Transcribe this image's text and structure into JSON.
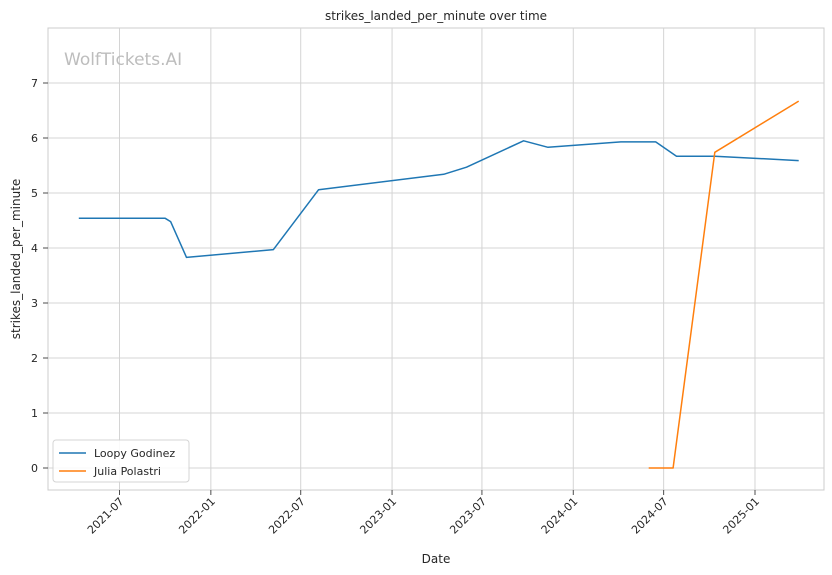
{
  "watermark": "WolfTickets.AI",
  "chart_data": {
    "type": "line",
    "title": "strikes_landed_per_minute over time",
    "xlabel": "Date",
    "ylabel": "strikes_landed_per_minute",
    "x_ticks": [
      "2021-07",
      "2022-01",
      "2022-07",
      "2023-01",
      "2023-07",
      "2024-01",
      "2024-07",
      "2025-01"
    ],
    "y_ticks": [
      "0",
      "1",
      "2",
      "3",
      "4",
      "5",
      "6",
      "7"
    ],
    "xlim": [
      "2021-02-07",
      "2025-05-20"
    ],
    "ylim": [
      -0.4,
      8.0
    ],
    "grid": true,
    "legend_position": "lower-left",
    "series": [
      {
        "name": "Loopy Godinez",
        "color": "#1f77b4",
        "points": [
          [
            "2021-04-10",
            4.54
          ],
          [
            "2021-10-01",
            4.54
          ],
          [
            "2021-10-12",
            4.48
          ],
          [
            "2021-11-13",
            3.83
          ],
          [
            "2022-05-07",
            3.97
          ],
          [
            "2022-08-06",
            5.06
          ],
          [
            "2023-04-15",
            5.34
          ],
          [
            "2023-05-31",
            5.47
          ],
          [
            "2023-09-23",
            5.95
          ],
          [
            "2023-11-11",
            5.83
          ],
          [
            "2024-04-06",
            5.93
          ],
          [
            "2024-06-15",
            5.93
          ],
          [
            "2024-07-27",
            5.67
          ],
          [
            "2024-10-12",
            5.67
          ],
          [
            "2025-03-30",
            5.59
          ]
        ]
      },
      {
        "name": "Julia Polastri",
        "color": "#ff7f0e",
        "points": [
          [
            "2024-06-01",
            0.0
          ],
          [
            "2024-07-20",
            0.0
          ],
          [
            "2024-10-12",
            5.74
          ],
          [
            "2025-03-30",
            6.67
          ]
        ]
      }
    ]
  }
}
